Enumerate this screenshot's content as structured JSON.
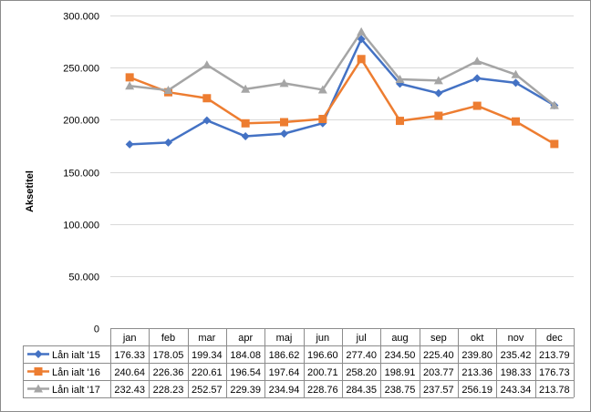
{
  "chart_data": {
    "type": "line",
    "title": "",
    "xlabel": "",
    "ylabel": "Aksetitel",
    "ylim": [
      0,
      300000
    ],
    "yticks": [
      "0",
      "50.000",
      "100.000",
      "150.000",
      "200.000",
      "250.000",
      "300.000"
    ],
    "ytick_values": [
      0,
      50000,
      100000,
      150000,
      200000,
      250000,
      300000
    ],
    "grid": true,
    "legend": "data-table-left",
    "categories": [
      "jan",
      "feb",
      "mar",
      "apr",
      "maj",
      "jun",
      "jul",
      "aug",
      "sep",
      "okt",
      "nov",
      "dec"
    ],
    "series": [
      {
        "name": "Lån ialt '15",
        "color": "#4472c4",
        "marker": "diamond",
        "values": [
          176330,
          178050,
          199340,
          184080,
          186620,
          196600,
          277400,
          234500,
          225400,
          239800,
          235420,
          213790
        ],
        "labels": [
          "176.33",
          "178.05",
          "199.34",
          "184.08",
          "186.62",
          "196.60",
          "277.40",
          "234.50",
          "225.40",
          "239.80",
          "235.42",
          "213.79"
        ]
      },
      {
        "name": "Lån ialt '16",
        "color": "#ed7d31",
        "marker": "square",
        "values": [
          240640,
          226360,
          220610,
          196540,
          197640,
          200710,
          258200,
          198910,
          203770,
          213360,
          198330,
          176730
        ],
        "labels": [
          "240.64",
          "226.36",
          "220.61",
          "196.54",
          "197.64",
          "200.71",
          "258.20",
          "198.91",
          "203.77",
          "213.36",
          "198.33",
          "176.73"
        ]
      },
      {
        "name": "Lån ialt '17",
        "color": "#a5a5a5",
        "marker": "triangle",
        "values": [
          232430,
          228230,
          252570,
          229390,
          234940,
          228760,
          284350,
          238750,
          237570,
          256190,
          243340,
          213780
        ],
        "labels": [
          "232.43",
          "228.23",
          "252.57",
          "229.39",
          "234.94",
          "228.76",
          "284.35",
          "238.75",
          "237.57",
          "256.19",
          "243.34",
          "213.78"
        ]
      }
    ]
  }
}
